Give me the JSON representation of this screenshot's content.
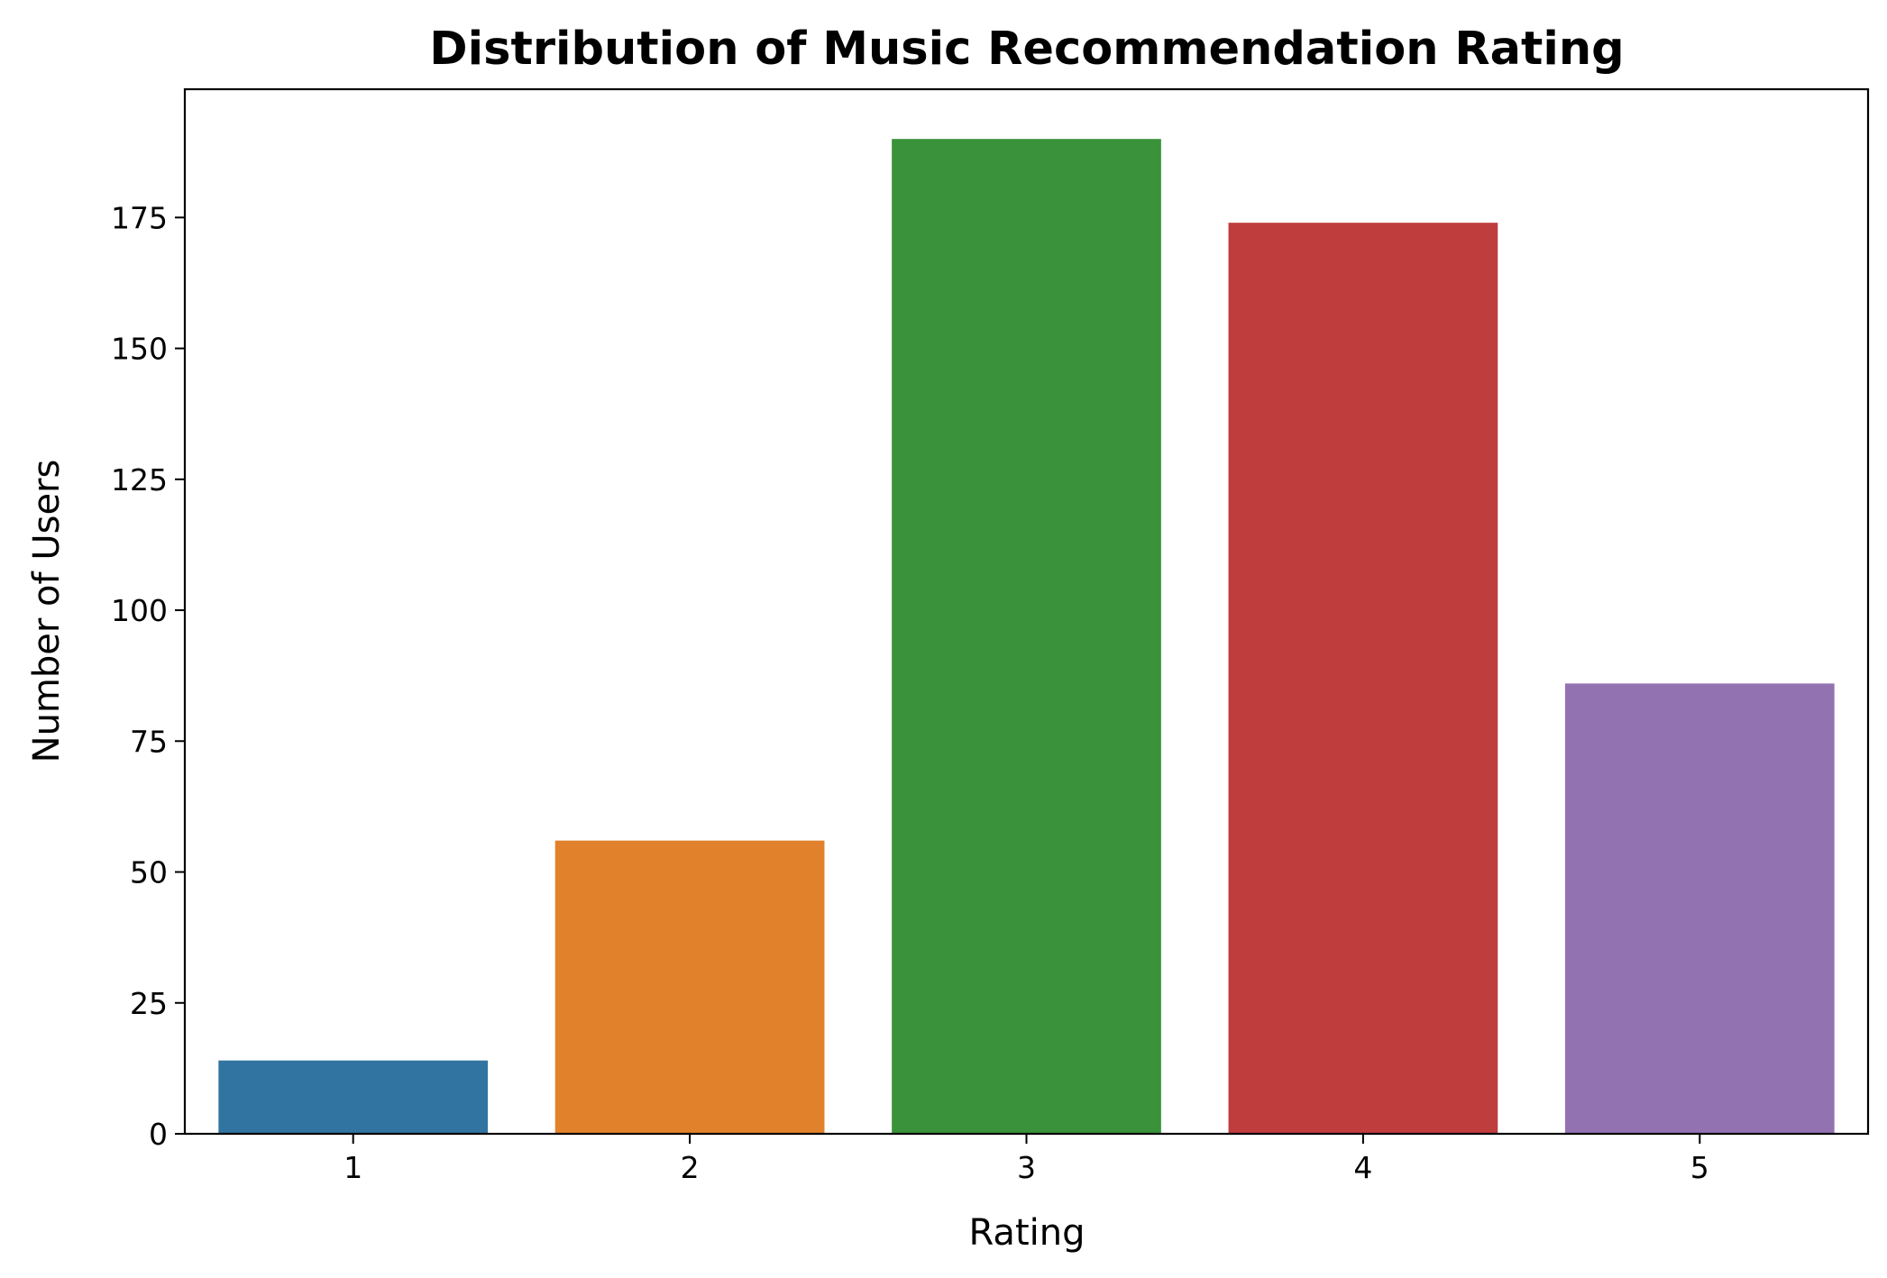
{
  "chart_data": {
    "type": "bar",
    "title": "Distribution of Music Recommendation Rating",
    "xlabel": "Rating",
    "ylabel": "Number of Users",
    "categories": [
      "1",
      "2",
      "3",
      "4",
      "5"
    ],
    "values": [
      14,
      56,
      190,
      174,
      86
    ],
    "colors": [
      "#3274a1",
      "#e1812c",
      "#3a923a",
      "#c03d3e",
      "#9372b2"
    ],
    "ylim": [
      0,
      199.5
    ],
    "yticks": [
      0,
      25,
      50,
      75,
      100,
      125,
      150,
      175
    ],
    "grid": false,
    "legend": "none"
  }
}
